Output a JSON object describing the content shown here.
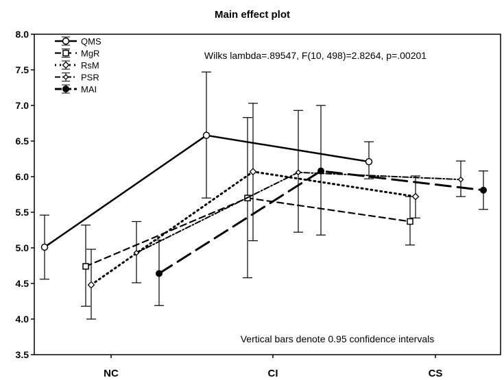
{
  "chart_data": {
    "type": "line",
    "title": "Main effect plot",
    "annotation_stats": "Wilks lambda=.89547, F(10, 498)=2.8264, p=.00201",
    "annotation_note": "Vertical bars denote 0.95 confidence intervals",
    "categories": [
      "NC",
      "CI",
      "CS"
    ],
    "xlabel": "",
    "ylabel": "",
    "ylim": [
      3.5,
      8.0
    ],
    "yticks": [
      "3.5",
      "4.0",
      "4.5",
      "5.0",
      "5.5",
      "6.0",
      "6.5",
      "7.0",
      "7.5",
      "8.0"
    ],
    "legend_position": "top-left",
    "series": [
      {
        "name": "QMS",
        "marker": "open-circle",
        "line": "solid",
        "values": [
          5.01,
          6.58,
          6.21
        ],
        "ci_low": [
          4.56,
          5.7,
          5.97
        ],
        "ci_high": [
          5.46,
          7.47,
          6.49
        ]
      },
      {
        "name": "MgR",
        "marker": "open-square",
        "line": "dashed",
        "values": [
          4.74,
          5.7,
          5.37
        ],
        "ci_low": [
          4.18,
          4.58,
          5.04
        ],
        "ci_high": [
          5.32,
          6.83,
          5.72
        ]
      },
      {
        "name": "RsM",
        "marker": "open-diamond",
        "line": "dotted",
        "values": [
          4.48,
          6.07,
          5.72
        ],
        "ci_low": [
          4.0,
          5.1,
          5.42
        ],
        "ci_high": [
          4.98,
          7.03,
          6.01
        ]
      },
      {
        "name": "PSR",
        "marker": "open-diamond-small",
        "line": "dash-dot",
        "values": [
          4.93,
          6.06,
          5.96
        ],
        "ci_low": [
          4.51,
          5.22,
          5.72
        ],
        "ci_high": [
          5.37,
          6.93,
          6.22
        ]
      },
      {
        "name": "MAI",
        "marker": "filled-circle",
        "line": "long-dash",
        "values": [
          4.64,
          6.08,
          5.81
        ],
        "ci_low": [
          4.19,
          5.18,
          5.54
        ],
        "ci_high": [
          5.11,
          7.0,
          6.08
        ]
      }
    ],
    "colors": {
      "ink": "#000000",
      "background": "#ffffff"
    }
  }
}
